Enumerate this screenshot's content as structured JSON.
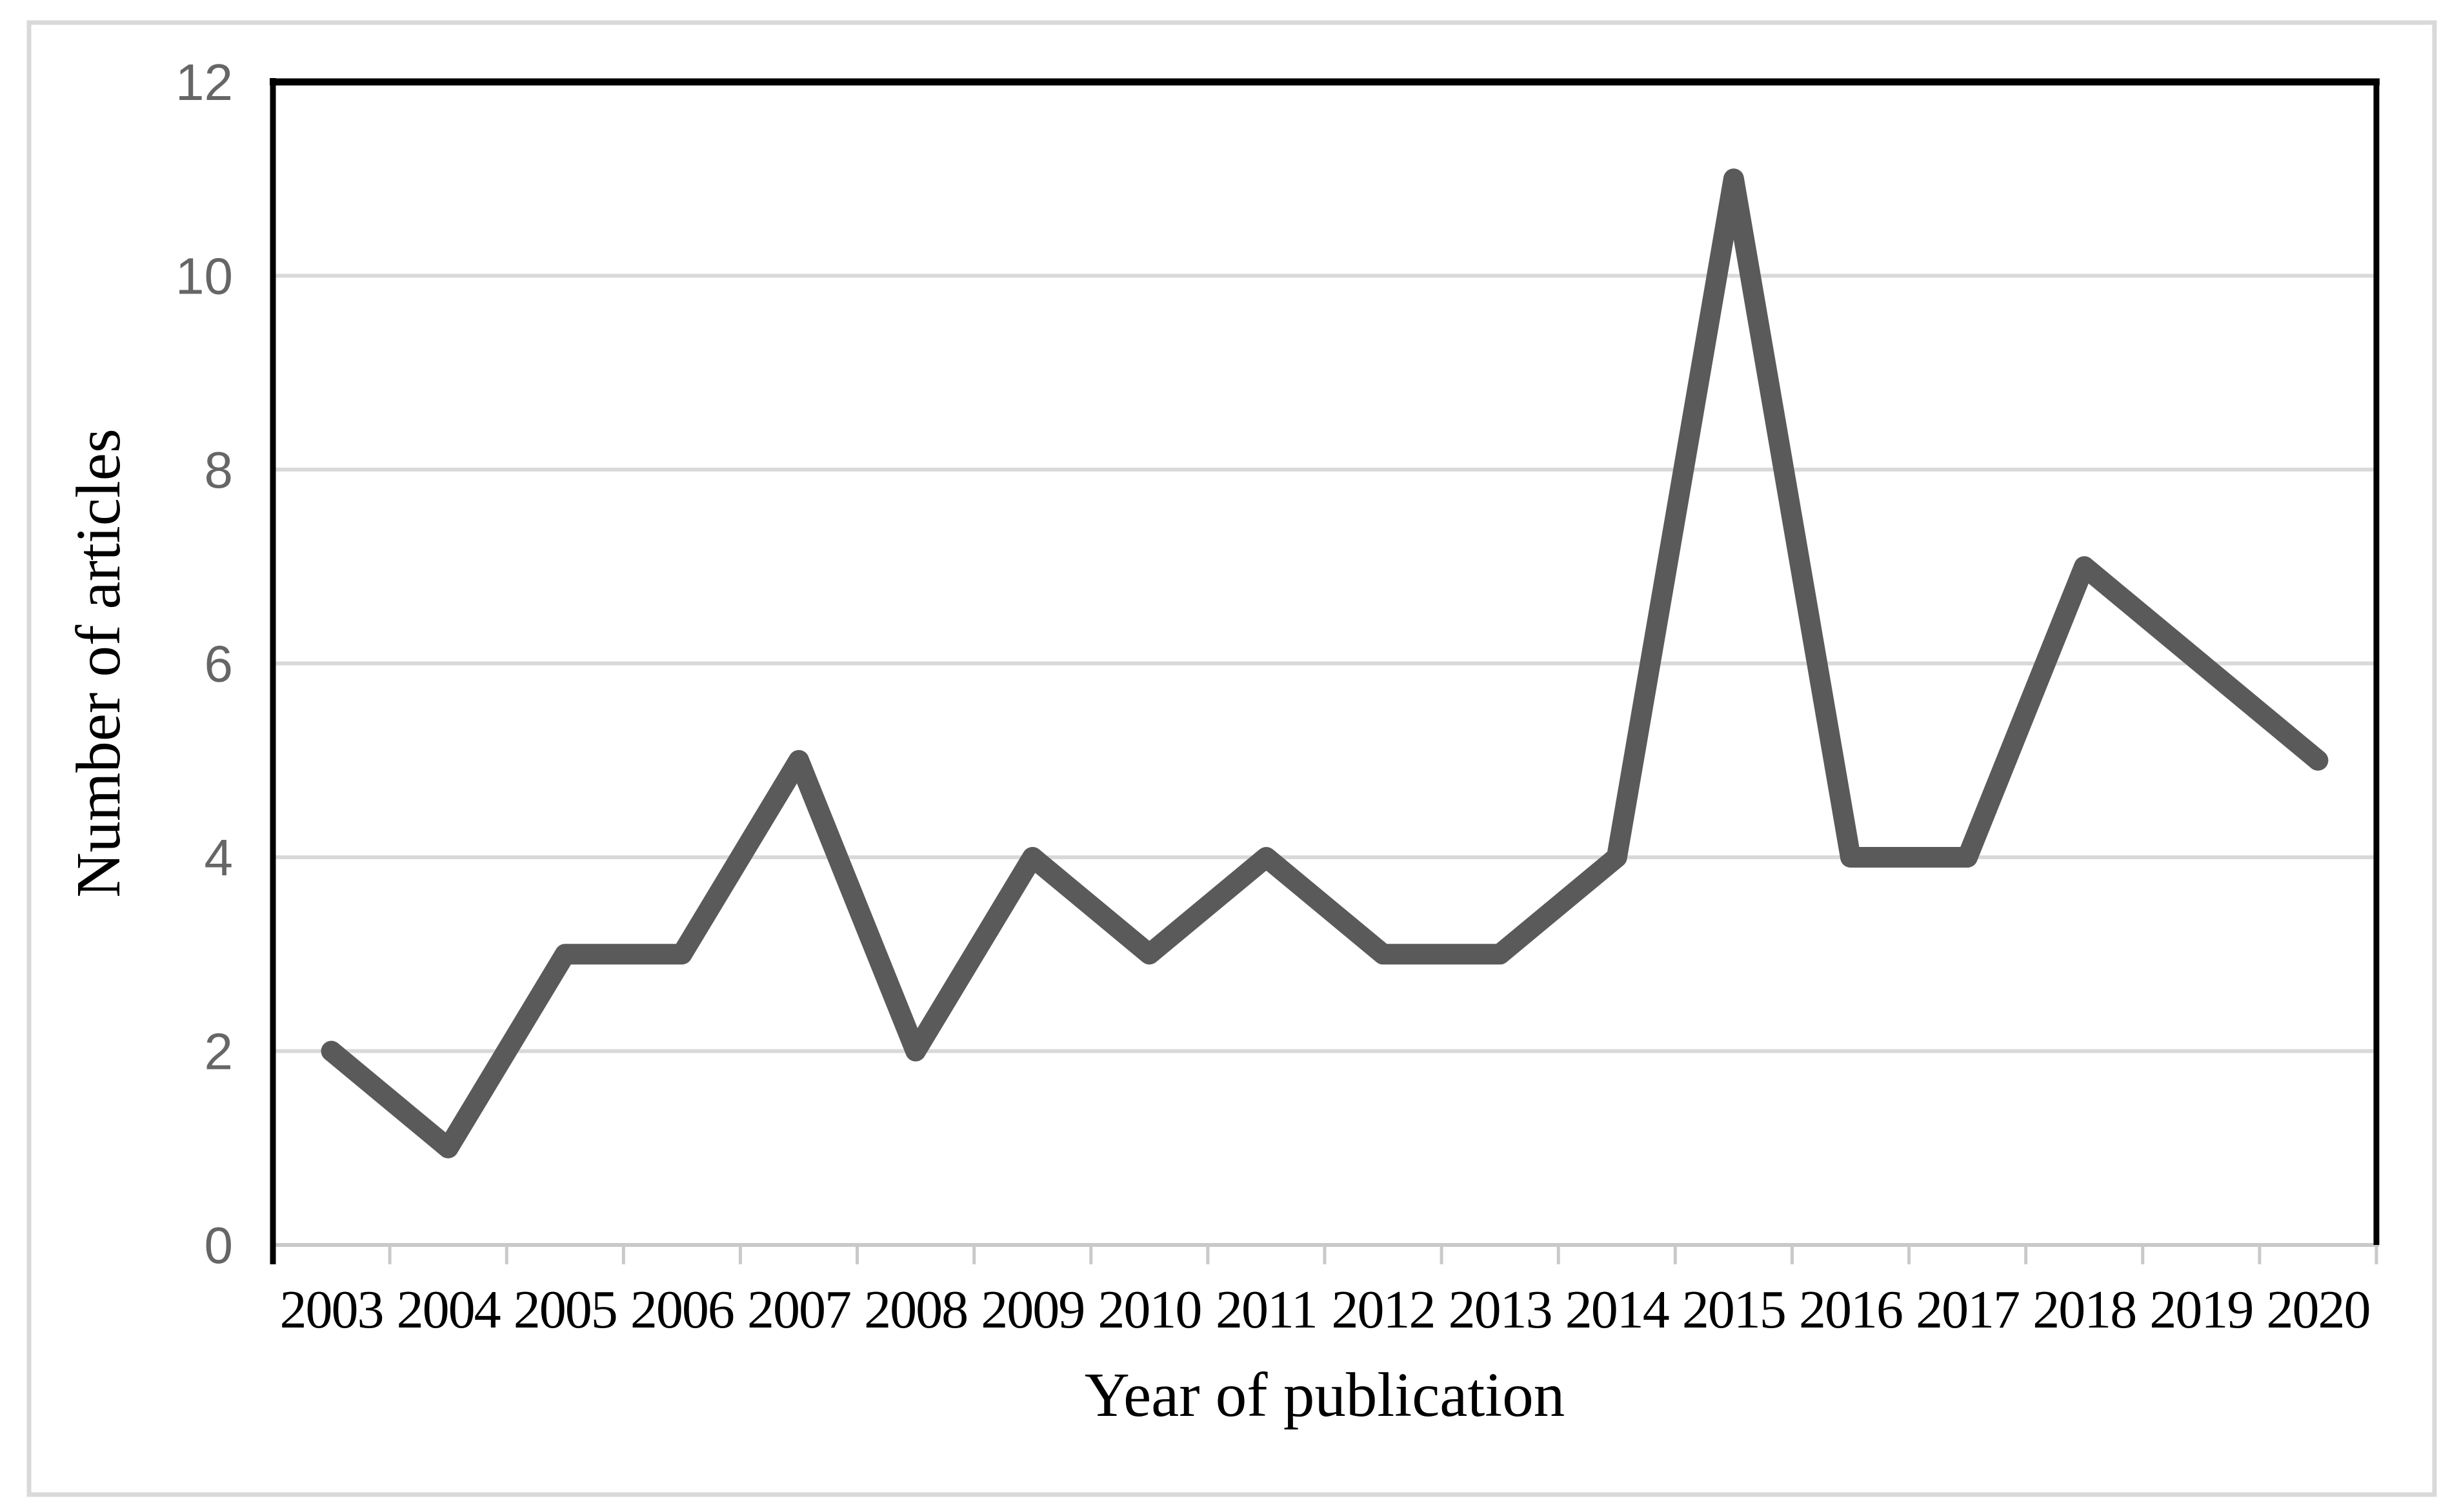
{
  "figure": {
    "background": "#FFFFFF",
    "border_color": "#D9D9D9"
  },
  "chart_data": {
    "type": "line",
    "title": "",
    "xlabel": "Year of publication",
    "ylabel": "Number of articles",
    "categories": [
      "2003",
      "2004",
      "2005",
      "2006",
      "2007",
      "2008",
      "2009",
      "2010",
      "2011",
      "2012",
      "2013",
      "2014",
      "2015",
      "2016",
      "2017",
      "2018",
      "2019",
      "2020"
    ],
    "series": [
      {
        "name": "Number of articles",
        "values": [
          2,
          1,
          3,
          3,
          5,
          2,
          4,
          3,
          4,
          3,
          3,
          4,
          11,
          4,
          4,
          7,
          6,
          5
        ]
      }
    ],
    "ylim": [
      0,
      12
    ],
    "yticks": [
      0,
      2,
      4,
      6,
      8,
      10,
      12
    ],
    "grid": true,
    "legend_position": "none",
    "line_color": "#5A5A5A",
    "gridline_color": "#D9D9D9",
    "axis_line_color": "#C9C9C9",
    "plot_border_color": "#000000",
    "ytick_label_color": "#666666",
    "xtick_label_color": "#000000"
  }
}
